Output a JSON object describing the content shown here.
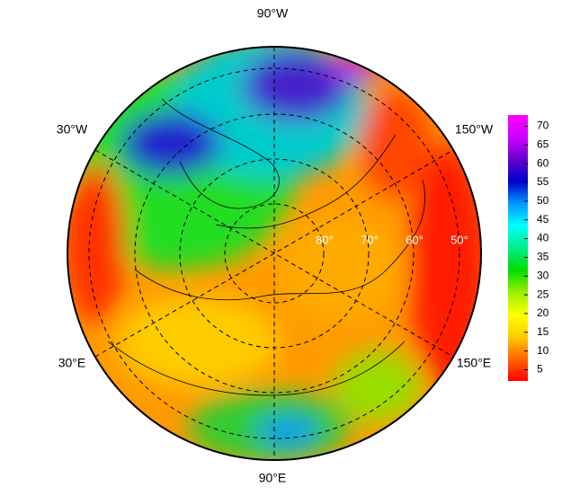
{
  "map": {
    "longitude_labels": [
      "90°W",
      "30°W",
      "150°W",
      "30°E",
      "150°E",
      "90°E"
    ],
    "latitude_labels": [
      "80°",
      "70°",
      "60°",
      "50°"
    ]
  },
  "colorbar": {
    "lim": [
      2,
      73
    ],
    "ticks": [
      5,
      10,
      15,
      20,
      25,
      30,
      35,
      40,
      45,
      50,
      55,
      60,
      65,
      70
    ],
    "colors": [
      "#ff0000",
      "#ff6600",
      "#ffcc00",
      "#ffff00",
      "#99ee00",
      "#00dd00",
      "#00ee88",
      "#00ffff",
      "#0099ff",
      "#0000cc",
      "#6600cc",
      "#cc00ff",
      "#ff00ff"
    ]
  }
}
